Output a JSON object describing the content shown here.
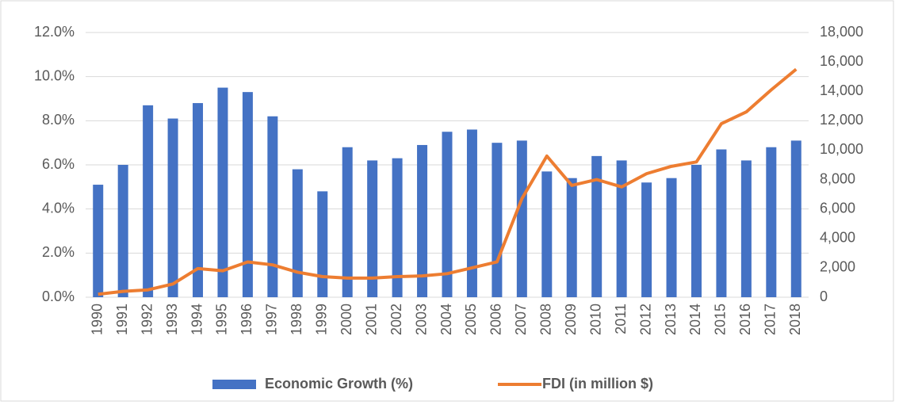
{
  "chart_data": {
    "type": "bar_line",
    "categories": [
      "1990",
      "1991",
      "1992",
      "1993",
      "1994",
      "1995",
      "1996",
      "1997",
      "1998",
      "1999",
      "2000",
      "2001",
      "2002",
      "2003",
      "2004",
      "2005",
      "2006",
      "2007",
      "2008",
      "2009",
      "2010",
      "2011",
      "2012",
      "2013",
      "2014",
      "2015",
      "2016",
      "2017",
      "2018"
    ],
    "series": [
      {
        "name": "Economic Growth (%)",
        "type": "bar",
        "color": "#4472c4",
        "axis": "y",
        "values": [
          5.1,
          6.0,
          8.7,
          8.1,
          8.8,
          9.5,
          9.3,
          8.2,
          5.8,
          4.8,
          6.8,
          6.2,
          6.3,
          6.9,
          7.5,
          7.6,
          7.0,
          7.1,
          5.7,
          5.4,
          6.4,
          6.2,
          5.2,
          5.4,
          6.0,
          6.7,
          6.2,
          6.8,
          7.1
        ]
      },
      {
        "name": "FDI (in million $)",
        "type": "line",
        "color": "#ed7d31",
        "axis": "y2",
        "values": [
          200,
          400,
          500,
          900,
          1950,
          1800,
          2400,
          2200,
          1700,
          1400,
          1300,
          1300,
          1400,
          1450,
          1600,
          2000,
          2400,
          6700,
          9600,
          7600,
          8000,
          7500,
          8400,
          8900,
          9200,
          11800,
          12600,
          14100,
          15500
        ]
      }
    ],
    "ylim": [
      0,
      12
    ],
    "yticks": [
      {
        "value": 0,
        "label": "0.0%"
      },
      {
        "value": 2,
        "label": "2.0%"
      },
      {
        "value": 4,
        "label": "4.0%"
      },
      {
        "value": 6,
        "label": "6.0%"
      },
      {
        "value": 8,
        "label": "8.0%"
      },
      {
        "value": 10,
        "label": "10.0%"
      },
      {
        "value": 12,
        "label": "12.0%"
      }
    ],
    "y2lim": [
      0,
      18000
    ],
    "y2ticks": [
      0,
      {
        "value": 2000,
        "label": "2,000"
      },
      {
        "value": 4000,
        "label": "4,000"
      },
      {
        "value": 6000,
        "label": "6,000"
      },
      {
        "value": 8000,
        "label": "8,000"
      },
      {
        "value": 10000,
        "label": "10,000"
      },
      {
        "value": 12000,
        "label": "12,000"
      },
      {
        "value": 14000,
        "label": "14,000"
      },
      {
        "value": 16000,
        "label": "16,000"
      },
      {
        "value": 18000,
        "label": "18,000"
      }
    ],
    "grid": true,
    "legend": "bottom"
  }
}
